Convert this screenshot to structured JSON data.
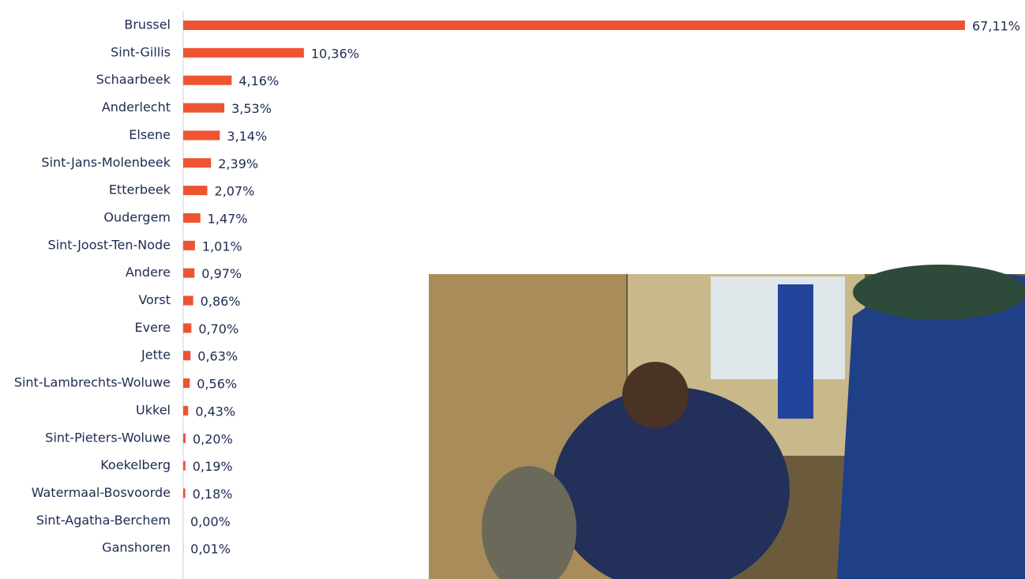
{
  "chart_data": {
    "type": "bar",
    "orientation": "horizontal",
    "color": "#ee5431",
    "categories": [
      "Brussel",
      "Sint-Gillis",
      "Schaarbeek",
      "Anderlecht",
      "Elsene",
      "Sint-Jans-Molenbeek",
      "Etterbeek",
      "Oudergem",
      "Sint-Joost-Ten-Node",
      "Andere",
      "Vorst",
      "Evere",
      "Jette",
      "Sint-Lambrechts-Woluwe",
      "Ukkel",
      "Sint-Pieters-Woluwe",
      "Koekelberg",
      "Watermaal-Bosvoorde",
      "Sint-Agatha-Berchem",
      "Ganshoren"
    ],
    "values": [
      67.11,
      10.36,
      4.16,
      3.53,
      3.14,
      2.39,
      2.07,
      1.47,
      1.01,
      0.97,
      0.86,
      0.7,
      0.63,
      0.56,
      0.43,
      0.2,
      0.19,
      0.18,
      0.0,
      0.01
    ],
    "value_labels": [
      "67,11%",
      "10,36%",
      "4,16%",
      "3,53%",
      "3,14%",
      "2,39%",
      "2,07%",
      "1,47%",
      "1,01%",
      "0,97%",
      "0,86%",
      "0,70%",
      "0,63%",
      "0,56%",
      "0,43%",
      "0,20%",
      "0,19%",
      "0,18%",
      "0,00%",
      "0,01%"
    ]
  }
}
